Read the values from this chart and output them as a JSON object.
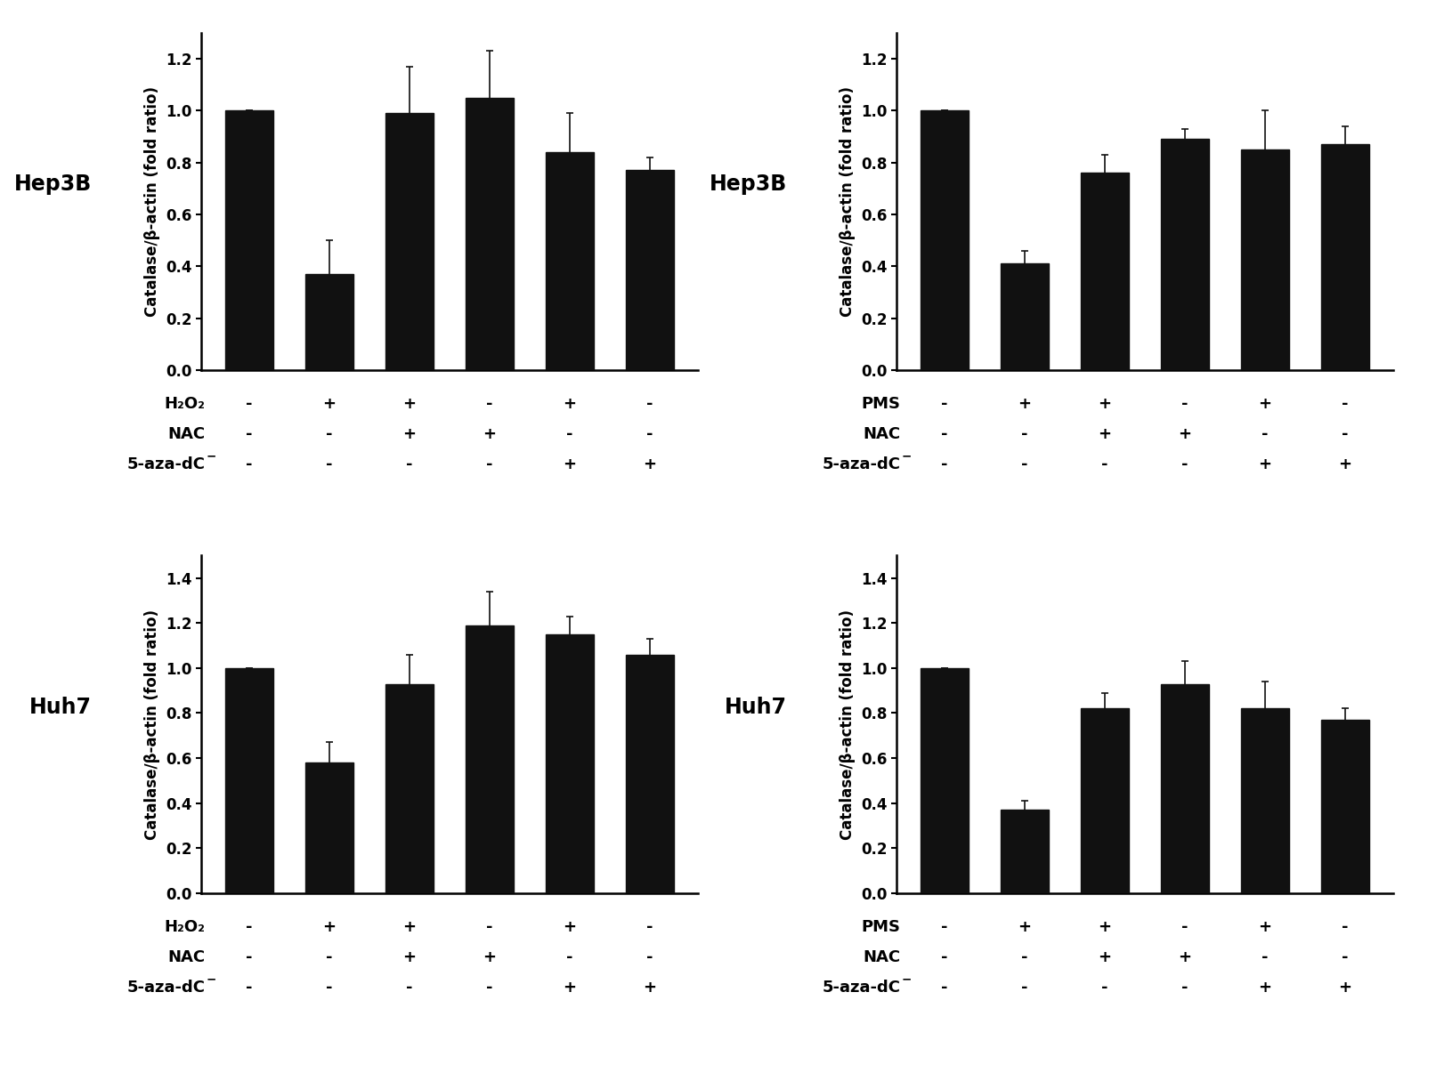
{
  "panels": [
    {
      "cell_line": "Hep3B",
      "oxidant": "H₂O₂",
      "ylabel": "Catalase/β-actin (fold ratio)",
      "ylim": [
        0,
        1.3
      ],
      "yticks": [
        0.0,
        0.2,
        0.4,
        0.6,
        0.8,
        1.0,
        1.2
      ],
      "values": [
        1.0,
        0.37,
        0.99,
        1.05,
        0.84,
        0.77
      ],
      "errors": [
        0.0,
        0.13,
        0.18,
        0.18,
        0.15,
        0.05
      ],
      "row1_labels": [
        "-",
        "+",
        "+",
        "-",
        "+",
        "-"
      ],
      "row2_labels": [
        "-",
        "-",
        "+",
        "+",
        "-",
        "-"
      ],
      "row3_labels": [
        "-",
        "-",
        "-",
        "-",
        "+",
        "+"
      ],
      "row1_name": "H₂O₂",
      "row2_name": "NAC",
      "row3_name": "5-aza-dC"
    },
    {
      "cell_line": "Hep3B",
      "oxidant": "PMS",
      "ylabel": "Catalase/β-actin (fold ratio)",
      "ylim": [
        0,
        1.3
      ],
      "yticks": [
        0.0,
        0.2,
        0.4,
        0.6,
        0.8,
        1.0,
        1.2
      ],
      "values": [
        1.0,
        0.41,
        0.76,
        0.89,
        0.85,
        0.87
      ],
      "errors": [
        0.0,
        0.05,
        0.07,
        0.04,
        0.15,
        0.07
      ],
      "row1_labels": [
        "-",
        "+",
        "+",
        "-",
        "+",
        "-"
      ],
      "row2_labels": [
        "-",
        "-",
        "+",
        "+",
        "-",
        "-"
      ],
      "row3_labels": [
        "-",
        "-",
        "-",
        "-",
        "+",
        "+"
      ],
      "row1_name": "PMS",
      "row2_name": "NAC",
      "row3_name": "5-aza-dC"
    },
    {
      "cell_line": "Huh7",
      "oxidant": "H₂O₂",
      "ylabel": "Catalase/β-actin (fold ratio)",
      "ylim": [
        0,
        1.5
      ],
      "yticks": [
        0.0,
        0.2,
        0.4,
        0.6,
        0.8,
        1.0,
        1.2,
        1.4
      ],
      "values": [
        1.0,
        0.58,
        0.93,
        1.19,
        1.15,
        1.06
      ],
      "errors": [
        0.0,
        0.09,
        0.13,
        0.15,
        0.08,
        0.07
      ],
      "row1_labels": [
        "-",
        "+",
        "+",
        "-",
        "+",
        "-"
      ],
      "row2_labels": [
        "-",
        "-",
        "+",
        "+",
        "-",
        "-"
      ],
      "row3_labels": [
        "-",
        "-",
        "-",
        "-",
        "+",
        "+"
      ],
      "row1_name": "H₂O₂",
      "row2_name": "NAC",
      "row3_name": "5-aza-dC"
    },
    {
      "cell_line": "Huh7",
      "oxidant": "PMS",
      "ylabel": "Catalase/β-actin (fold ratio)",
      "ylim": [
        0,
        1.5
      ],
      "yticks": [
        0.0,
        0.2,
        0.4,
        0.6,
        0.8,
        1.0,
        1.2,
        1.4
      ],
      "values": [
        1.0,
        0.37,
        0.82,
        0.93,
        0.82,
        0.77
      ],
      "errors": [
        0.0,
        0.04,
        0.07,
        0.1,
        0.12,
        0.05
      ],
      "row1_labels": [
        "-",
        "+",
        "+",
        "-",
        "+",
        "-"
      ],
      "row2_labels": [
        "-",
        "-",
        "+",
        "+",
        "-",
        "-"
      ],
      "row3_labels": [
        "-",
        "-",
        "-",
        "-",
        "+",
        "+"
      ],
      "row1_name": "PMS",
      "row2_name": "NAC",
      "row3_name": "5-aza-dC"
    }
  ],
  "bar_color": "#111111",
  "bar_width": 0.6,
  "bar_edgecolor": "#111111",
  "capsize": 3,
  "ecolor": "#111111",
  "label_fontsize": 12,
  "tick_fontsize": 12,
  "cell_label_fontsize": 17,
  "annotation_fontsize": 13,
  "background_color": "#ffffff"
}
